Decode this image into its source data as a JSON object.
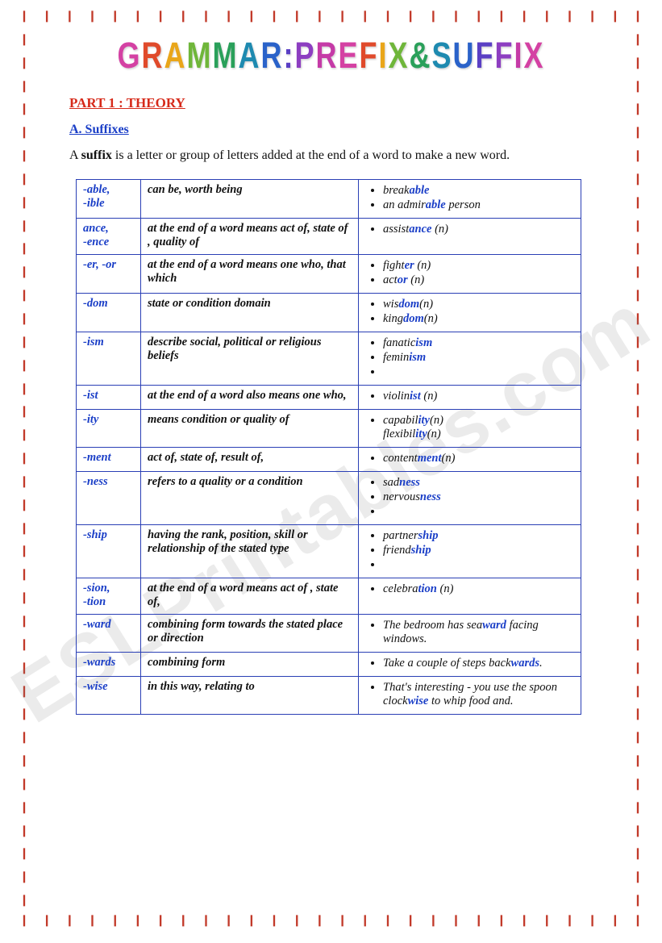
{
  "title": {
    "text": "GRAMMAR : PREFIX & SUFFIX",
    "colors": [
      "#d441a3",
      "#e04a2b",
      "#e9a61a",
      "#6fb63a",
      "#2aa05a",
      "#1e8ab0",
      "#2a62c9",
      "#5a3fc4",
      "#8d3ec1",
      "#c53aa7"
    ]
  },
  "part_title": "PART 1 : THEORY",
  "sub_title": "A. Suffixes",
  "intro_prefix": "A ",
  "intro_bold": "suffix",
  "intro_rest": " is a letter or group of letters added at the end of a word to make a new word.",
  "watermark": "ESLPrintables.com",
  "ornament_counts": {
    "horizontal": 28,
    "vertical": 40
  },
  "table": {
    "border_color": "#2a3fb5",
    "rows": [
      {
        "suffix": "-able,\n-ible",
        "meaning": "can be, worth being",
        "examples": [
          {
            "pre": "break",
            "hl": "able",
            "post": ""
          },
          {
            "pre": "an admir",
            "hl": "able",
            "post": " person"
          }
        ]
      },
      {
        "suffix": "ance,\n-ence",
        "meaning": "at the end of a word means act of, state of , quality of",
        "examples": [
          {
            "pre": "assist",
            "hl": "ance",
            "post": " (n)"
          }
        ]
      },
      {
        "suffix": "-er, -or",
        "meaning": "at the end of a word means one who, that which",
        "examples": [
          {
            "pre": "fight",
            "hl": "er",
            "post": " (n)"
          },
          {
            "pre": "act",
            "hl": "or",
            "post": " (n)"
          }
        ]
      },
      {
        "suffix": "-dom",
        "meaning": "state or condition domain",
        "examples": [
          {
            "pre": "wis",
            "hl": "dom",
            "post": "(n)"
          },
          {
            "pre": "king",
            "hl": "dom",
            "post": "(n)"
          }
        ]
      },
      {
        "suffix": "-ism",
        "meaning": "describe social, political or religious beliefs",
        "examples": [
          {
            "pre": "fanatic",
            "hl": "ism",
            "post": ""
          },
          {
            "pre": "femin",
            "hl": "ism",
            "post": ""
          },
          {
            "pre": "",
            "hl": "",
            "post": ""
          }
        ]
      },
      {
        "suffix": "-ist",
        "meaning": "at the end of a word also means one who,",
        "examples": [
          {
            "pre": "violin",
            "hl": "ist",
            "post": " (n)"
          }
        ]
      },
      {
        "suffix": "-ity",
        "meaning": "means condition or quality of",
        "examples": [
          {
            "pre": "capabil",
            "hl": "ity",
            "post": "(n) flexibil"
          },
          {
            "pre": "",
            "hl": "ity",
            "post": "(n)",
            "continue": true
          }
        ],
        "raw": true
      },
      {
        "suffix": "-ment",
        "meaning": "act of, state of, result of,",
        "examples": [
          {
            "pre": "content",
            "hl": "ment",
            "post": "(n)"
          }
        ]
      },
      {
        "suffix": "-ness",
        "meaning": "refers to a quality or a condition",
        "examples": [
          {
            "pre": "sad",
            "hl": "ness",
            "post": ""
          },
          {
            "pre": "nervous",
            "hl": "ness",
            "post": ""
          },
          {
            "pre": "",
            "hl": "",
            "post": ""
          }
        ]
      },
      {
        "suffix": "-ship",
        "meaning": "having the rank, position, skill or relationship of the stated type",
        "examples": [
          {
            "pre": "partner",
            "hl": "ship",
            "post": ""
          },
          {
            "pre": "friend",
            "hl": "ship",
            "post": ""
          },
          {
            "pre": "",
            "hl": "",
            "post": ""
          }
        ]
      },
      {
        "suffix": "-sion,\n-tion",
        "meaning": "at the end of a word means act of , state of,",
        "examples": [
          {
            "pre": "celebra",
            "hl": "tion",
            "post": " (n)"
          }
        ]
      },
      {
        "suffix": "-ward",
        "meaning": "combining form towards the stated place or direction",
        "examples": [
          {
            "pre": "The bedroom has sea",
            "hl": "ward",
            "post": " facing windows."
          }
        ]
      },
      {
        "suffix": "-wards",
        "meaning": "combining form",
        "examples": [
          {
            "pre": "Take a couple of steps back",
            "hl": "wards",
            "post": "."
          }
        ]
      },
      {
        "suffix": "-wise",
        "meaning": "in this way, relating to",
        "examples": [
          {
            "pre": "That's interesting - you use the spoon clock",
            "hl": "wise",
            "post": " to whip food and."
          }
        ]
      }
    ]
  }
}
